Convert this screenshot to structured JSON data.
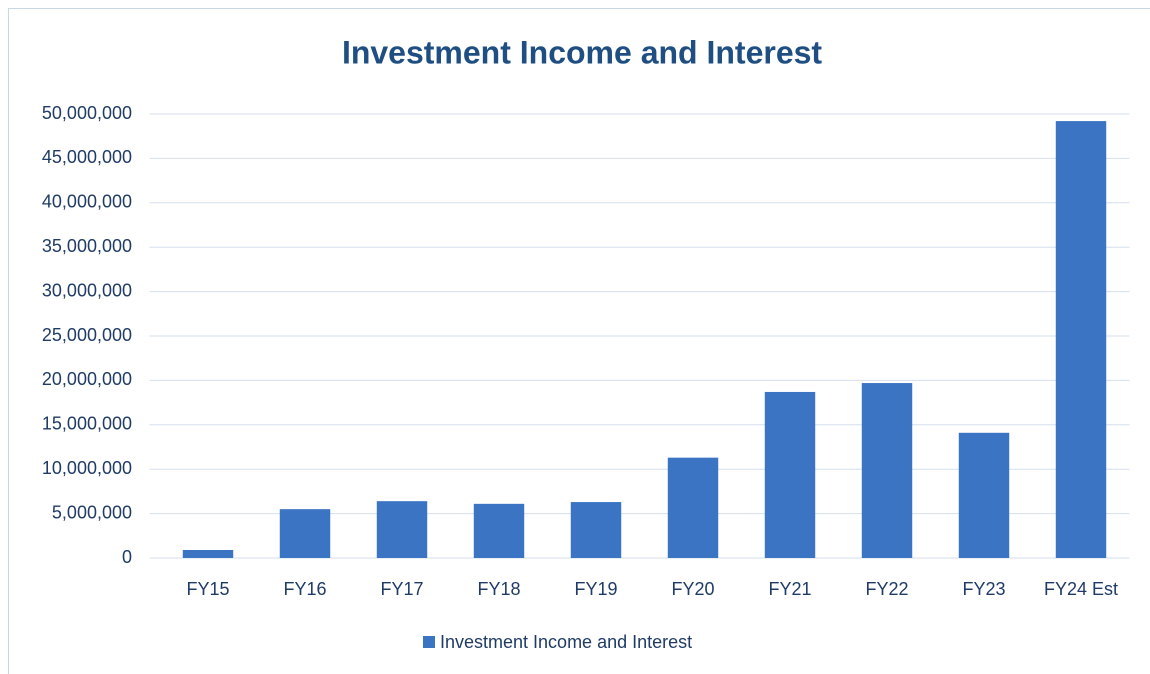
{
  "chart_data": {
    "type": "bar",
    "title": "Investment Income and Interest",
    "categories": [
      "FY15",
      "FY16",
      "FY17",
      "FY18",
      "FY19",
      "FY20",
      "FY21",
      "FY22",
      "FY23",
      "FY24 Est"
    ],
    "series": [
      {
        "name": "Investment Income and Interest",
        "color": "#3a74c2",
        "values": [
          900000,
          5500000,
          6400000,
          6100000,
          6300000,
          11300000,
          18700000,
          19700000,
          14100000,
          49200000
        ]
      }
    ],
    "ylim": [
      0,
      50000000
    ],
    "yticks": [
      0,
      {
        "value": 5000000,
        "label": "5,000,000"
      },
      {
        "value": 10000000,
        "label": "10,000,000"
      },
      {
        "value": 15000000,
        "label": "15,000,000"
      },
      {
        "value": 20000000,
        "label": "20,000,000"
      },
      {
        "value": 25000000,
        "label": "25,000,000"
      },
      {
        "value": 30000000,
        "label": "30,000,000"
      },
      {
        "value": 35000000,
        "label": "35,000,000"
      },
      {
        "value": 40000000,
        "label": "40,000,000"
      },
      {
        "value": 45000000,
        "label": "45,000,000"
      },
      {
        "value": 50000000,
        "label": "50,000,000"
      }
    ],
    "grid": true,
    "legend": "bottom"
  }
}
